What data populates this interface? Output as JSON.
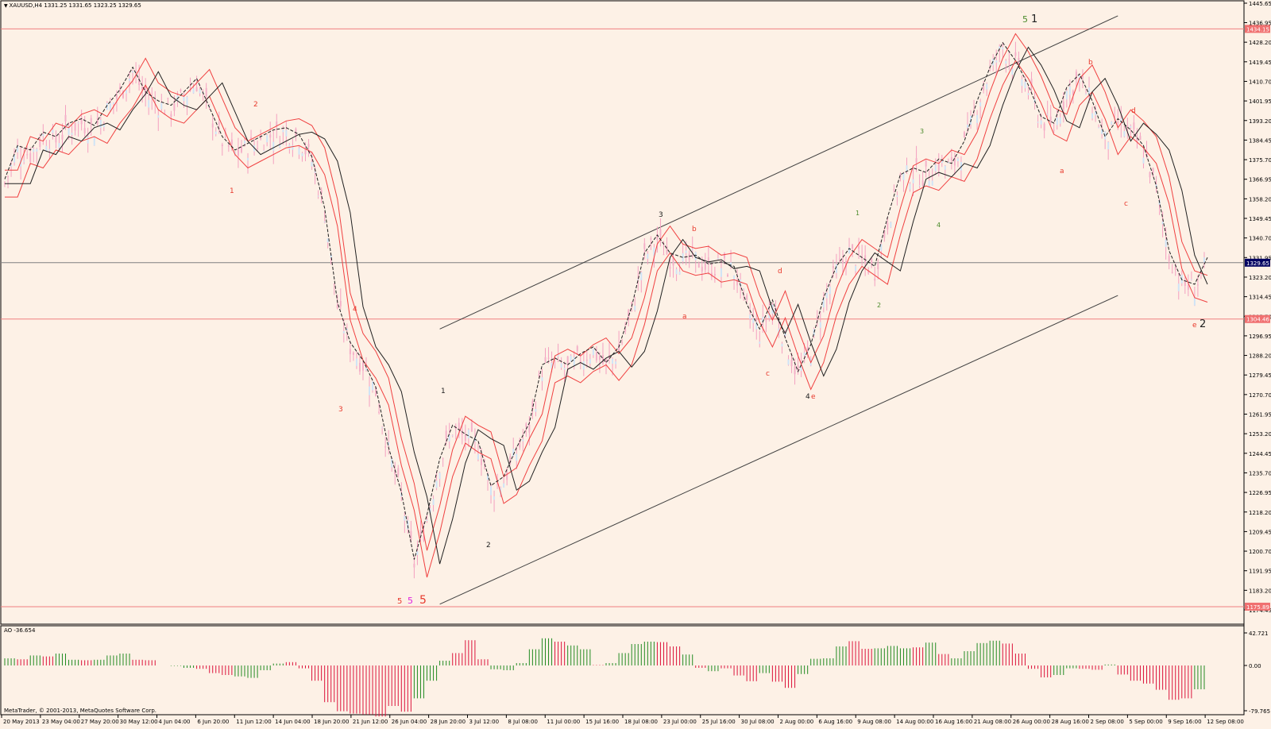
{
  "window": {
    "symbol_header": "XAUUSD,H4  1331.25 1331.65 1323.25 1329.65",
    "indicator_header": "AO -36.654",
    "copyright": "MetaTrader, © 2001-2013, MetaQuotes Software Corp."
  },
  "colors": {
    "background": "#fdf1e6",
    "axis": "#000000",
    "hline": "#f08080",
    "price_line": "#808080",
    "trendline": "#404040",
    "ma_black": "#202020",
    "ma_red": "#f04040",
    "ao_up": "#228b22",
    "ao_down": "#dc143c",
    "label_red": "#e8392c",
    "label_black": "#202020",
    "label_green": "#4a8a2a",
    "label_magenta": "#e020e0",
    "price_tag_red": "#f07070",
    "price_tag_current": "#000060"
  },
  "price_axis": {
    "ticks": [
      "1445.65",
      "1436.95",
      "1428.20",
      "1419.45",
      "1410.70",
      "1401.95",
      "1393.20",
      "1384.45",
      "1375.70",
      "1366.95",
      "1358.20",
      "1349.45",
      "1340.70",
      "1331.95",
      "1323.20",
      "1314.45",
      "1305.70",
      "1296.95",
      "1288.20",
      "1279.45",
      "1270.70",
      "1261.95",
      "1253.20",
      "1244.45",
      "1235.70",
      "1226.95",
      "1218.20",
      "1209.45",
      "1200.70",
      "1191.95",
      "1183.20",
      "1174.45"
    ],
    "price_tags": [
      {
        "label": "1434.15",
        "kind": "hline"
      },
      {
        "label": "1329.65",
        "kind": "current"
      },
      {
        "label": "1304.46",
        "kind": "hline"
      },
      {
        "label": "1175.89",
        "kind": "hline"
      }
    ]
  },
  "ao_axis": {
    "ticks": [
      "42.721",
      "0.00",
      "-79.765"
    ]
  },
  "time_axis": {
    "labels": [
      "20 May 2013",
      "23 May 04:00",
      "27 May 20:00",
      "30 May 12:00",
      "4 Jun 04:00",
      "6 Jun 20:00",
      "11 Jun 12:00",
      "14 Jun 04:00",
      "18 Jun 20:00",
      "21 Jun 12:00",
      "26 Jun 04:00",
      "28 Jun 20:00",
      "3 Jul 12:00",
      "8 Jul 08:00",
      "11 Jul 00:00",
      "15 Jul 16:00",
      "18 Jul 08:00",
      "23 Jul 00:00",
      "25 Jul 16:00",
      "30 Jul 08:00",
      "2 Aug 00:00",
      "6 Aug 16:00",
      "9 Aug 08:00",
      "14 Aug 00:00",
      "16 Aug 16:00",
      "21 Aug 08:00",
      "26 Aug 00:00",
      "28 Aug 16:00",
      "2 Sep 08:00",
      "5 Sep 00:00",
      "9 Sep 16:00",
      "12 Sep 08:00"
    ]
  },
  "wave_labels": [
    {
      "text": "1",
      "color": "red"
    },
    {
      "text": "2",
      "color": "red"
    },
    {
      "text": "3",
      "color": "red"
    },
    {
      "text": "4",
      "color": "red"
    },
    {
      "text": "1",
      "color": "black"
    },
    {
      "text": "2",
      "color": "black"
    },
    {
      "text": "3",
      "color": "black"
    },
    {
      "text": "a",
      "color": "red"
    },
    {
      "text": "b",
      "color": "red"
    },
    {
      "text": "c",
      "color": "red"
    },
    {
      "text": "d",
      "color": "red"
    },
    {
      "text": "4",
      "color": "black"
    },
    {
      "text": "e",
      "color": "red"
    },
    {
      "text": "1",
      "color": "green"
    },
    {
      "text": "2",
      "color": "green"
    },
    {
      "text": "3",
      "color": "green"
    },
    {
      "text": "4",
      "color": "green"
    },
    {
      "text": "5",
      "color": "green"
    },
    {
      "text": "1",
      "color": "black"
    },
    {
      "text": "a",
      "color": "red"
    },
    {
      "text": "b",
      "color": "red"
    },
    {
      "text": "c",
      "color": "red"
    },
    {
      "text": "d",
      "color": "red"
    },
    {
      "text": "e",
      "color": "red"
    },
    {
      "text": "2",
      "color": "black"
    },
    {
      "text": "5",
      "color": "red"
    },
    {
      "text": "5",
      "color": "magenta"
    },
    {
      "text": "5",
      "color": "red"
    }
  ],
  "chart_data": {
    "type": "line",
    "symbol": "XAUUSD",
    "timeframe": "H4",
    "ylim": [
      1174.45,
      1445.65
    ],
    "horizontal_lines": [
      1434.15,
      1329.65,
      1304.46,
      1175.89
    ],
    "series": [
      {
        "values": [
          1365,
          1380,
          1378,
          1386,
          1384,
          1390,
          1392,
          1389,
          1398,
          1405,
          1415,
          1404,
          1400,
          1398,
          1404,
          1410,
          1397,
          1384,
          1378,
          1381,
          1384,
          1387,
          1388,
          1385,
          1375,
          1352,
          1310,
          1292,
          1284,
          1272,
          1245,
          1225,
          1195,
          1215,
          1240,
          1255,
          1251,
          1248,
          1228,
          1232,
          1245,
          1256,
          1282,
          1285,
          1282,
          1287,
          1290,
          1283,
          1290,
          1308,
          1332,
          1340,
          1332,
          1330,
          1331,
          1327,
          1328,
          1326,
          1309,
          1298,
          1311,
          1294,
          1279,
          1291,
          1312,
          1326,
          1334,
          1330,
          1326,
          1348,
          1367,
          1370,
          1368,
          1374,
          1372,
          1382,
          1400,
          1415,
          1426,
          1418,
          1407,
          1393,
          1390,
          1406,
          1412,
          1400,
          1384,
          1392,
          1387,
          1380,
          1362,
          1333,
          1320,
          1318,
          1330
        ]
      }
    ]
  }
}
